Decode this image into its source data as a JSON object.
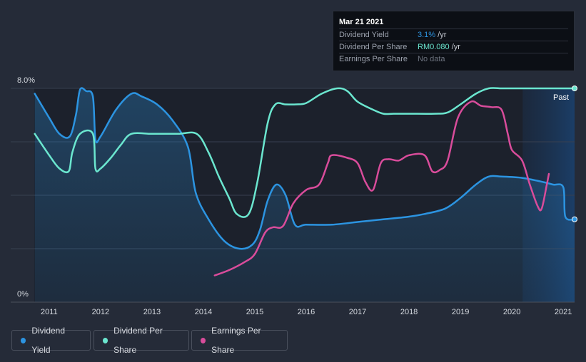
{
  "chart_data": {
    "type": "line",
    "title": "",
    "xlabel": "",
    "ylabel": "",
    "x_ticks": [
      "2011",
      "2012",
      "2013",
      "2014",
      "2015",
      "2016",
      "2017",
      "2018",
      "2019",
      "2020",
      "2021"
    ],
    "x_range": [
      2010.71,
      2021.22
    ],
    "y_ticks": [
      "8.0%",
      "0%"
    ],
    "ylim": [
      0,
      8.0
    ],
    "past_label": "Past",
    "forecast_start": 2020.21,
    "series": [
      {
        "name": "Dividend Yield",
        "color": "#2c94e1",
        "area": true,
        "unit": "%",
        "points": [
          [
            2010.72,
            7.8
          ],
          [
            2011.0,
            6.9
          ],
          [
            2011.2,
            6.3
          ],
          [
            2011.4,
            6.2
          ],
          [
            2011.52,
            7.0
          ],
          [
            2011.6,
            7.95
          ],
          [
            2011.72,
            7.9
          ],
          [
            2011.85,
            7.7
          ],
          [
            2011.9,
            6.1
          ],
          [
            2012.0,
            6.2
          ],
          [
            2012.3,
            7.2
          ],
          [
            2012.6,
            7.8
          ],
          [
            2012.8,
            7.7
          ],
          [
            2013.1,
            7.4
          ],
          [
            2013.4,
            6.8
          ],
          [
            2013.7,
            5.8
          ],
          [
            2013.85,
            4.1
          ],
          [
            2014.1,
            3.1
          ],
          [
            2014.4,
            2.3
          ],
          [
            2014.7,
            2.0
          ],
          [
            2014.95,
            2.15
          ],
          [
            2015.1,
            2.7
          ],
          [
            2015.25,
            3.8
          ],
          [
            2015.42,
            4.4
          ],
          [
            2015.6,
            4.0
          ],
          [
            2015.78,
            2.9
          ],
          [
            2016.0,
            2.9
          ],
          [
            2016.5,
            2.9
          ],
          [
            2017.0,
            3.0
          ],
          [
            2017.5,
            3.1
          ],
          [
            2018.0,
            3.2
          ],
          [
            2018.3,
            3.3
          ],
          [
            2018.7,
            3.5
          ],
          [
            2019.0,
            3.9
          ],
          [
            2019.3,
            4.4
          ],
          [
            2019.55,
            4.7
          ],
          [
            2019.8,
            4.7
          ],
          [
            2020.2,
            4.65
          ],
          [
            2020.6,
            4.5
          ],
          [
            2020.8,
            4.4
          ],
          [
            2021.0,
            4.3
          ],
          [
            2021.04,
            3.2
          ],
          [
            2021.22,
            3.1
          ]
        ]
      },
      {
        "name": "Dividend Per Share",
        "color": "#6be6cf",
        "area": false,
        "unit": "RM",
        "points": [
          [
            2010.72,
            6.3
          ],
          [
            2011.0,
            5.5
          ],
          [
            2011.2,
            5.0
          ],
          [
            2011.38,
            4.9
          ],
          [
            2011.45,
            5.6
          ],
          [
            2011.6,
            6.3
          ],
          [
            2011.85,
            6.3
          ],
          [
            2011.9,
            5.0
          ],
          [
            2012.0,
            5.0
          ],
          [
            2012.2,
            5.4
          ],
          [
            2012.4,
            5.9
          ],
          [
            2012.6,
            6.3
          ],
          [
            2013.0,
            6.3
          ],
          [
            2013.5,
            6.3
          ],
          [
            2013.87,
            6.3
          ],
          [
            2014.1,
            5.6
          ],
          [
            2014.3,
            4.7
          ],
          [
            2014.5,
            3.9
          ],
          [
            2014.65,
            3.3
          ],
          [
            2014.88,
            3.3
          ],
          [
            2015.05,
            4.5
          ],
          [
            2015.25,
            6.7
          ],
          [
            2015.4,
            7.4
          ],
          [
            2015.6,
            7.4
          ],
          [
            2015.8,
            7.4
          ],
          [
            2016.0,
            7.45
          ],
          [
            2016.3,
            7.8
          ],
          [
            2016.6,
            8.0
          ],
          [
            2016.8,
            7.9
          ],
          [
            2017.0,
            7.5
          ],
          [
            2017.3,
            7.2
          ],
          [
            2017.5,
            7.05
          ],
          [
            2017.7,
            7.05
          ],
          [
            2018.0,
            7.05
          ],
          [
            2018.5,
            7.05
          ],
          [
            2018.75,
            7.1
          ],
          [
            2019.0,
            7.4
          ],
          [
            2019.3,
            7.8
          ],
          [
            2019.55,
            8.0
          ],
          [
            2019.8,
            8.0
          ],
          [
            2020.0,
            8.0
          ],
          [
            2020.5,
            8.0
          ],
          [
            2021.0,
            8.0
          ],
          [
            2021.22,
            8.0
          ]
        ]
      },
      {
        "name": "Earnings Per Share",
        "color": "#d94c9b",
        "area": false,
        "unit": "RM",
        "points": [
          [
            2014.22,
            1.0
          ],
          [
            2014.5,
            1.2
          ],
          [
            2014.8,
            1.5
          ],
          [
            2015.0,
            1.8
          ],
          [
            2015.2,
            2.6
          ],
          [
            2015.35,
            2.8
          ],
          [
            2015.55,
            2.85
          ],
          [
            2015.75,
            3.7
          ],
          [
            2016.0,
            4.2
          ],
          [
            2016.25,
            4.4
          ],
          [
            2016.42,
            5.2
          ],
          [
            2016.5,
            5.5
          ],
          [
            2016.8,
            5.4
          ],
          [
            2017.0,
            5.2
          ],
          [
            2017.15,
            4.5
          ],
          [
            2017.3,
            4.2
          ],
          [
            2017.45,
            5.2
          ],
          [
            2017.6,
            5.35
          ],
          [
            2017.8,
            5.3
          ],
          [
            2018.0,
            5.5
          ],
          [
            2018.3,
            5.5
          ],
          [
            2018.45,
            4.9
          ],
          [
            2018.6,
            4.95
          ],
          [
            2018.75,
            5.3
          ],
          [
            2018.95,
            6.9
          ],
          [
            2019.2,
            7.5
          ],
          [
            2019.4,
            7.35
          ],
          [
            2019.6,
            7.3
          ],
          [
            2019.8,
            7.2
          ],
          [
            2019.92,
            6.3
          ],
          [
            2020.0,
            5.7
          ],
          [
            2020.2,
            5.3
          ],
          [
            2020.35,
            4.4
          ],
          [
            2020.5,
            3.6
          ],
          [
            2020.58,
            3.5
          ],
          [
            2020.68,
            4.4
          ],
          [
            2020.72,
            4.8
          ]
        ]
      }
    ]
  },
  "tooltip": {
    "date": "Mar 21 2021",
    "rows": [
      {
        "label": "Dividend Yield",
        "value": "3.1%",
        "suffix": " /yr",
        "color": "#2c94e1"
      },
      {
        "label": "Dividend Per Share",
        "value": "RM0.080",
        "suffix": " /yr",
        "color": "#6be6cf"
      },
      {
        "label": "Earnings Per Share",
        "value": "No data",
        "suffix": "",
        "color": "#6e7480"
      }
    ]
  },
  "legend": [
    {
      "label": "Dividend Yield",
      "color": "#2c94e1"
    },
    {
      "label": "Dividend Per Share",
      "color": "#6be6cf"
    },
    {
      "label": "Earnings Per Share",
      "color": "#d94c9b"
    }
  ]
}
